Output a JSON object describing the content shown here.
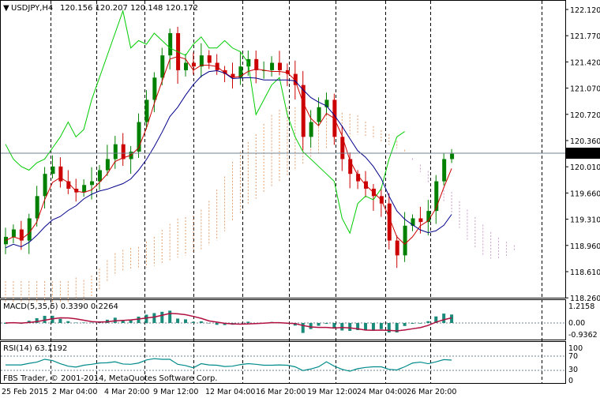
{
  "main": {
    "symbol": "USDJPY,H4",
    "ohlc": "120.156 120.207 120.148 120.172",
    "price_axis": [
      "122.120",
      "121.770",
      "121.420",
      "121.070",
      "120.720",
      "120.360",
      "120.010",
      "119.660",
      "119.310",
      "118.960",
      "118.610",
      "118.260"
    ],
    "current_price": "120.172",
    "time_axis": [
      "25 Feb 2015",
      "2 Mar 04:00",
      "4 Mar 20:00",
      "9 Mar 12:00",
      "12 Mar 04:00",
      "16 Mar 20:00",
      "19 Mar 12:00",
      "24 Mar 04:00",
      "26 Mar 20:00"
    ]
  },
  "macd": {
    "label": "MACD(5,35,5) 0.3390 0.2264",
    "axis": [
      "1.2158",
      "0.00",
      "-0.9362"
    ]
  },
  "rsi": {
    "label": "RSI(14) 63.1192",
    "axis": [
      "100",
      "70",
      "30",
      "0"
    ]
  },
  "copyright": "FBS Trader, © 2001-2014, MetaQuotes Software Corp.",
  "colors": {
    "bull": "#008000",
    "bear": "#cc0000",
    "chikou": "#00cc00",
    "tenkan": "#cc0000",
    "kijun": "#00008b",
    "cloud": "#e0a070",
    "cloud_b": "#c8a0c8",
    "macd_hist": "#1a8a7a",
    "macd_signal": "#b01040",
    "rsi_line": "#008b8b",
    "price_line": "#708090"
  },
  "chart_data": {
    "type": "candlestick",
    "symbol": "USDJPY",
    "timeframe": "H4",
    "ohlc_last": {
      "open": 120.156,
      "high": 120.207,
      "low": 120.148,
      "close": 120.172
    },
    "ylim": [
      118.26,
      122.12
    ],
    "x_ticks": [
      "25 Feb 2015",
      "2 Mar 04:00",
      "4 Mar 20:00",
      "9 Mar 12:00",
      "12 Mar 04:00",
      "16 Mar 20:00",
      "19 Mar 12:00",
      "24 Mar 04:00",
      "26 Mar 20:00"
    ],
    "close_series": [
      119.05,
      119.15,
      119.0,
      119.3,
      119.6,
      119.9,
      120.0,
      119.8,
      119.7,
      119.65,
      119.75,
      119.8,
      119.95,
      120.1,
      120.3,
      120.1,
      120.2,
      120.6,
      120.9,
      121.2,
      121.5,
      121.8,
      121.3,
      121.4,
      121.35,
      121.5,
      121.4,
      121.3,
      121.25,
      121.2,
      121.35,
      121.45,
      121.3,
      121.3,
      121.4,
      121.3,
      121.25,
      121.1,
      120.4,
      120.6,
      120.8,
      120.9,
      120.4,
      120.1,
      119.9,
      119.8,
      119.7,
      119.6,
      119.5,
      119.0,
      118.8,
      119.2,
      119.3,
      119.25,
      119.4,
      119.8,
      120.1,
      120.172
    ],
    "macd": {
      "value": 0.339,
      "signal": 0.2264,
      "axis": [
        1.2158,
        0.0,
        -0.9362
      ]
    },
    "rsi": {
      "value": 63.1192,
      "levels": [
        70,
        30
      ]
    }
  }
}
